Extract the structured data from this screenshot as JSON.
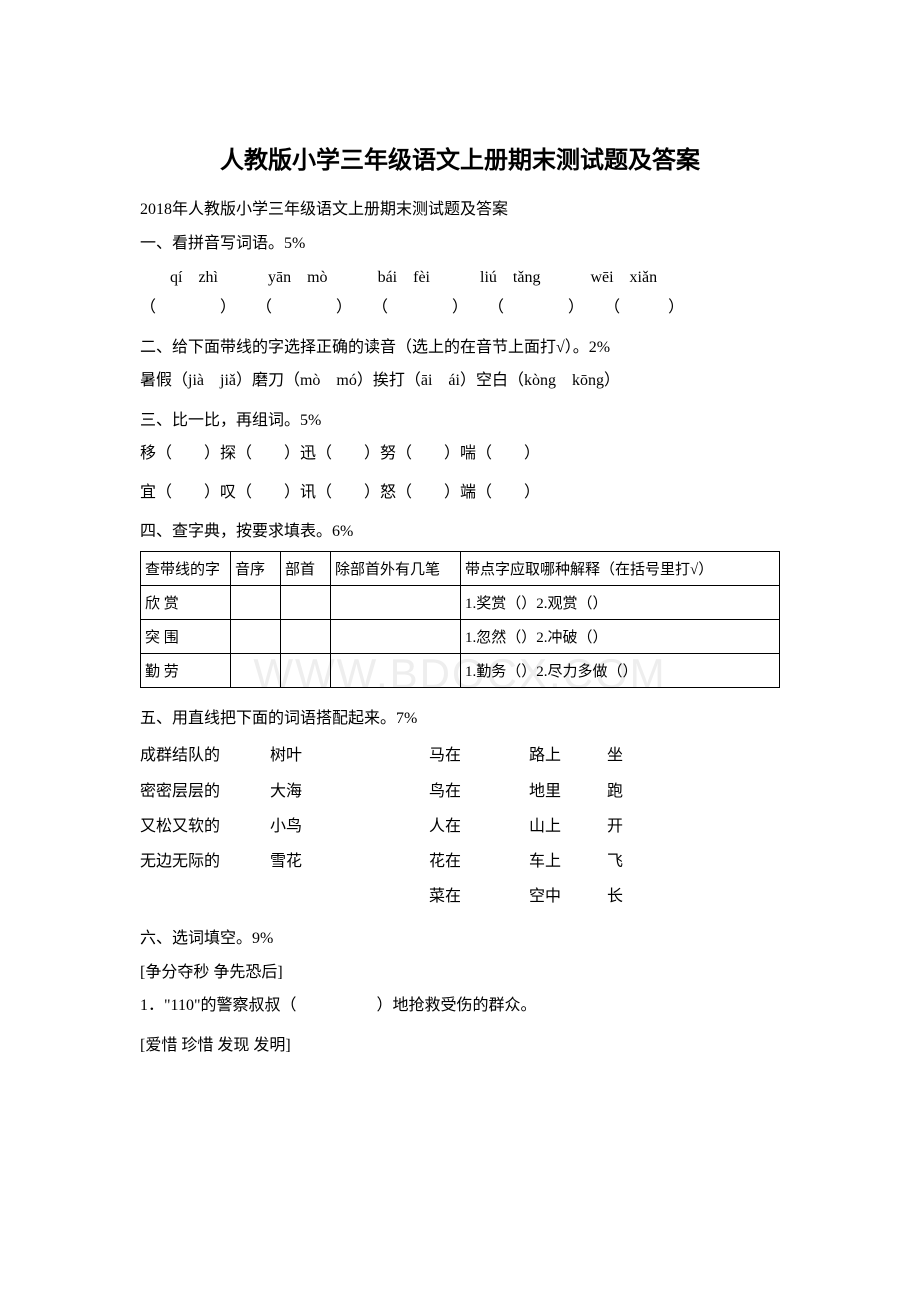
{
  "watermark": "WWW.BDOCX.COM",
  "title": "人教版小学三年级语文上册期末测试题及答案",
  "subtitle": "2018年人教版小学三年级语文上册期末测试题及答案",
  "section1": {
    "heading": "一、看拼音写词语。5%",
    "pinyin": [
      "qí　zhì",
      "yān　mò",
      "bái　fèi",
      "liú　tǎng",
      "wēi　xiǎn"
    ],
    "blanks": [
      "（　　　　）",
      "（　　　　）",
      "（　　　　）",
      "（　　　　）",
      "（　　　）"
    ]
  },
  "section2": {
    "heading": "二、给下面带线的字选择正确的读音（选上的在音节上面打√）。2%",
    "line": "暑假（jià　jiǎ）磨刀（mò　mó）挨打（āi　ái）空白（kòng　kōng）"
  },
  "section3": {
    "heading": "三、比一比，再组词。5%",
    "line1": "移（　　）探（　　）迅（　　）努（　　）喘（　　）",
    "line2": "宜（　　）叹（　　）讯（　　）怒（　　）端（　　）"
  },
  "section4": {
    "heading": "四、查字典，按要求填表。6%",
    "headers": [
      "查带线的字",
      "音序",
      "部首",
      "除部首外有几笔",
      "带点字应取哪种解释（在括号里打√）"
    ],
    "rows": [
      {
        "char": "欣 赏",
        "meaning": "1.奖赏（）2.观赏（）"
      },
      {
        "char": "突 围",
        "meaning": "1.忽然（）2.冲破（）"
      },
      {
        "char": "勤 劳",
        "meaning": "1.勤务（）2.尽力多做（）"
      }
    ]
  },
  "section5": {
    "heading": "五、用直线把下面的词语搭配起来。7%",
    "rows": [
      [
        "成群结队的",
        "树叶",
        "马在",
        "路上",
        "坐"
      ],
      [
        "密密层层的",
        "大海",
        "鸟在",
        "地里",
        "跑"
      ],
      [
        "又松又软的",
        "小鸟",
        "人在",
        "山上",
        "开"
      ],
      [
        "无边无际的",
        "雪花",
        "花在",
        "车上",
        "飞"
      ],
      [
        "",
        "",
        "菜在",
        "空中",
        "长"
      ]
    ]
  },
  "section6": {
    "heading": "六、选词填空。9%",
    "group1_label": "[争分夺秒 争先恐后]",
    "item1": "1．\"110\"的警察叔叔（　　　　　）地抢救受伤的群众。",
    "group2_label": "[爱惜 珍惜 发现 发明]"
  }
}
